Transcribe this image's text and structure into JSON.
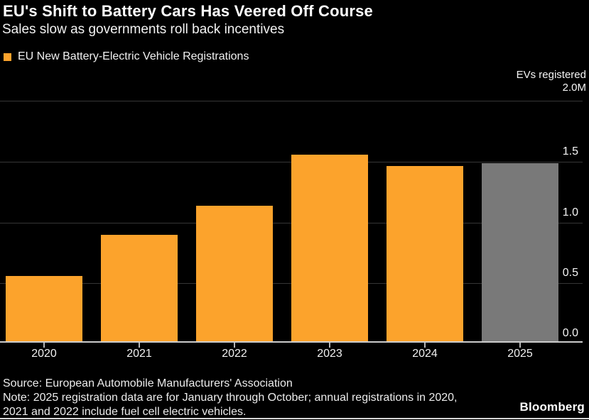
{
  "header": {
    "title": "EU's Shift to Battery Cars Has Veered Off Course",
    "subtitle": "Sales slow as governments roll back incentives"
  },
  "legend": {
    "label": "EU New Battery-Electric Vehicle Registrations",
    "swatch_color": "#FCA32C"
  },
  "y_axis_header": {
    "title": "EVs registered",
    "top_tick_label": "2.0M"
  },
  "chart_data": {
    "type": "bar",
    "title": "EU's Shift to Battery Cars Has Veered Off Course",
    "subtitle": "Sales slow as governments roll back incentives",
    "legend_entries": [
      "EU New Battery-Electric Vehicle Registrations"
    ],
    "categories": [
      "2020",
      "2021",
      "2022",
      "2023",
      "2024",
      "2025"
    ],
    "values": [
      0.54,
      0.88,
      1.12,
      1.54,
      1.45,
      1.47
    ],
    "unit": "M",
    "ylabel": "EVs registered",
    "ylim": [
      0,
      2.0
    ],
    "yticks": [
      0.0,
      0.5,
      1.0,
      1.5,
      2.0
    ],
    "ytick_labels": [
      "0.0",
      "0.5",
      "1.0",
      "1.5",
      "2.0M"
    ],
    "grid": true,
    "legend_position": "top-left",
    "bar_colors": [
      "#FCA32C",
      "#FCA32C",
      "#FCA32C",
      "#FCA32C",
      "#FCA32C",
      "#797979"
    ],
    "colors": {
      "primary": "#FCA32C",
      "partial_year": "#797979",
      "background": "#000000",
      "gridline": "#363636",
      "baseline": "#cccccc"
    }
  },
  "footer": {
    "source": "Source: European Automobile Manufacturers' Association",
    "note_lines": [
      "Note: 2025 registration data are for January through October; annual registrations in 2020,",
      "2021 and 2022 include fuel cell electric vehicles."
    ],
    "brand": "Bloomberg"
  }
}
